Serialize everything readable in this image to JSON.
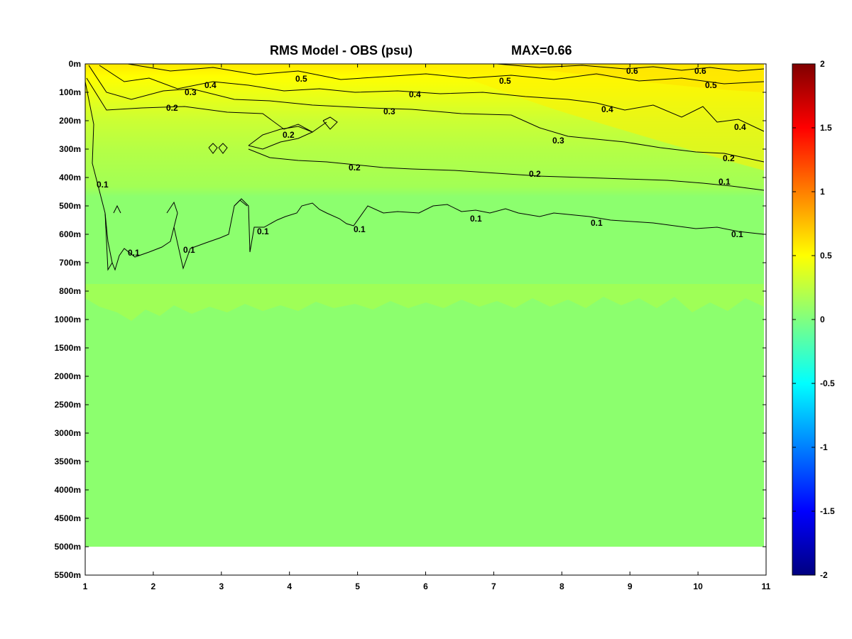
{
  "chart_data": {
    "type": "heatmap",
    "title": "RMS Model - OBS (psu)",
    "max_label": "MAX=0.66",
    "xlabel": "",
    "ylabel": "",
    "x_ticks": [
      "1",
      "2",
      "3",
      "4",
      "5",
      "6",
      "7",
      "8",
      "9",
      "10",
      "11"
    ],
    "y_ticks": [
      "0m",
      "100m",
      "200m",
      "300m",
      "400m",
      "500m",
      "600m",
      "700m",
      "800m",
      "1000m",
      "1500m",
      "2000m",
      "2500m",
      "3000m",
      "3500m",
      "4000m",
      "4500m",
      "5000m",
      "5500m"
    ],
    "xlim": [
      1,
      11
    ],
    "colorbar": {
      "ticks": [
        "2",
        "1.5",
        "1",
        "0.5",
        "0",
        "-0.5",
        "-1",
        "-1.5",
        "-2"
      ],
      "range": [
        -2,
        2
      ],
      "colormap": "jet"
    },
    "data_bottom_depth": "5000m",
    "contour_levels": [
      0.1,
      0.2,
      0.3,
      0.4,
      0.5,
      0.6
    ],
    "contour_labels": [
      "0.6",
      "0.6",
      "0.5",
      "0.5",
      "0.5",
      "0.4",
      "0.4",
      "0.4",
      "0.4",
      "0.3",
      "0.3",
      "0.3",
      "0.2",
      "0.2",
      "0.2",
      "0.2",
      "0.2",
      "0.1",
      "0.1",
      "0.1",
      "0.1",
      "0.1",
      "0.1",
      "0.1",
      "0.1",
      "0.1"
    ],
    "grid": false,
    "legend": "colorbar-right",
    "background_value": 0.1,
    "colors": {
      "background_field": "#8CFF6E",
      "low_band": "#9DFF55",
      "mid_band": "#C3FF3C",
      "upper_band": "#E6FF1E",
      "surface_band": "#FFF000",
      "max_band": "#FFE600"
    }
  }
}
